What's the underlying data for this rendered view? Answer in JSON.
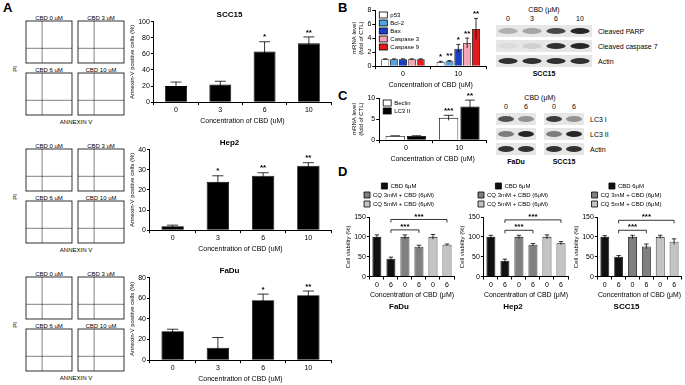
{
  "panel_labels": [
    "A",
    "B",
    "C",
    "D"
  ],
  "flow_plots": [
    {
      "plots": [
        "CBD 0 uM",
        "CBD 3 uM",
        "CBD 6 uM",
        "CBD 10 uM"
      ],
      "x_label": "ANNEXIN V",
      "y_label": "PI"
    },
    {
      "plots": [
        "CBD 0 uM",
        "CBD 3 uM",
        "CBD 6 uM",
        "CBD 10 uM"
      ],
      "x_label": "ANNEXIN V",
      "y_label": "PI"
    },
    {
      "plots": [
        "CBD 0 uM",
        "CBD 3 uM",
        "CBD 6 uM",
        "CBD 10 uM"
      ],
      "x_label": "ANNEXIN V",
      "y_label": "PI"
    }
  ],
  "chart_data": [
    {
      "type": "bar",
      "title": "SCC15",
      "categories": [
        "0",
        "3",
        "6",
        "10"
      ],
      "values": [
        20,
        22,
        63,
        73
      ],
      "errors": [
        5,
        4,
        12,
        8
      ],
      "annotations": [
        null,
        null,
        "*",
        "**"
      ],
      "color": "#000000",
      "ylim": [
        0,
        100
      ],
      "yticks": [
        0,
        20,
        40,
        60,
        80,
        100
      ],
      "y_label": "Annexin-V positive cells (%)",
      "x_label": "Concentration of CBD (uM)",
      "grid": false
    },
    {
      "type": "bar",
      "title": "Hep2",
      "categories": [
        "0",
        "3",
        "6",
        "10"
      ],
      "values": [
        2,
        24,
        27,
        32
      ],
      "errors": [
        0.5,
        3,
        1.5,
        1.5
      ],
      "annotations": [
        null,
        "*",
        "**",
        "**"
      ],
      "color": "#000000",
      "ylim": [
        0,
        40
      ],
      "yticks": [
        0,
        10,
        20,
        30,
        40
      ],
      "y_label": "Annexin-V positive cells (%)",
      "x_label": "Concentration of CBD (uM)",
      "grid": false
    },
    {
      "type": "bar",
      "title": "FaDu",
      "categories": [
        "0",
        "3",
        "6",
        "10"
      ],
      "values": [
        28,
        12,
        58,
        63
      ],
      "errors": [
        2,
        10,
        6,
        4
      ],
      "annotations": [
        null,
        null,
        "*",
        "**"
      ],
      "color": "#000000",
      "ylim": [
        0,
        80
      ],
      "yticks": [
        0,
        20,
        40,
        60,
        80
      ],
      "y_label": "Annexin-V positive cells (%)",
      "x_label": "Concentration of CBD (uM)",
      "grid": false
    },
    {
      "type": "bar",
      "categories": [
        "0",
        "10"
      ],
      "series": [
        {
          "name": "p53",
          "color": "#ffffff",
          "values": [
            1,
            0.6
          ],
          "errors": [
            0.05,
            0.1
          ],
          "annotations": [
            null,
            "*"
          ]
        },
        {
          "name": "Bcl-2",
          "color": "#4fa3e0",
          "values": [
            1,
            0.7
          ],
          "errors": [
            0.05,
            0.1
          ],
          "annotations": [
            null,
            "**"
          ]
        },
        {
          "name": "Bax",
          "color": "#1a3fc4",
          "values": [
            1,
            2.5
          ],
          "errors": [
            0.05,
            0.6
          ],
          "annotations": [
            null,
            "*"
          ]
        },
        {
          "name": "Caspase 3",
          "color": "#f4a6b4",
          "values": [
            1,
            3.3
          ],
          "errors": [
            0.05,
            0.7
          ],
          "annotations": [
            null,
            "**"
          ]
        },
        {
          "name": "Caspase 9",
          "color": "#e41a1c",
          "values": [
            1,
            5.3
          ],
          "errors": [
            0.05,
            1.5
          ],
          "annotations": [
            null,
            "**"
          ]
        }
      ],
      "ylim": [
        0,
        8
      ],
      "yticks": [
        0,
        2,
        4,
        6,
        8
      ],
      "y_label": [
        "mRNA level",
        "(fold of CTL)"
      ],
      "x_label": "Concentration of CBD (uM)",
      "legend": "top-left",
      "grid": false
    },
    {
      "type": "bar",
      "categories": [
        "0",
        "10"
      ],
      "series": [
        {
          "name": "Beclin",
          "color": "#ffffff",
          "values": [
            1,
            5.3
          ],
          "errors": [
            0.05,
            0.6
          ],
          "annotations": [
            null,
            "***"
          ]
        },
        {
          "name": "LC3 II",
          "color": "#000000",
          "values": [
            1,
            8
          ],
          "errors": [
            0.05,
            1.5
          ],
          "annotations": [
            null,
            "**"
          ]
        }
      ],
      "ylim": [
        0,
        10
      ],
      "yticks": [
        0,
        5,
        10
      ],
      "y_label": [
        "mRNA level",
        "(fold of CTL)"
      ],
      "x_label": "Concentration of CBD (uM)",
      "legend": "top-left",
      "grid": false
    },
    {
      "type": "bar",
      "title": "FaDu",
      "categories": [
        "0",
        "6",
        "0",
        "6",
        "0",
        "6"
      ],
      "series": [
        {
          "name": "CBD 6μM",
          "color": "#111111",
          "values": [
            100,
            45,
            null,
            null,
            null,
            null
          ],
          "errors": [
            5,
            4,
            null,
            null,
            null,
            null
          ]
        },
        {
          "name": "CQ 3mM + CBD (6μM)",
          "color": "#808080",
          "values": [
            null,
            null,
            100,
            75,
            null,
            null
          ],
          "errors": [
            null,
            null,
            5,
            4,
            null,
            null
          ]
        },
        {
          "name": "CQ 5mM + CBD (6μM)",
          "color": "#c4c4c4",
          "values": [
            null,
            null,
            null,
            null,
            100,
            80
          ],
          "errors": [
            null,
            null,
            null,
            null,
            6,
            2
          ]
        }
      ],
      "comparisons": [
        {
          "from": 1,
          "to": 3,
          "label": "***"
        },
        {
          "from": 1,
          "to": 5,
          "label": "***"
        }
      ],
      "ylim": [
        0,
        150
      ],
      "yticks": [
        0,
        50,
        100,
        150
      ],
      "y_label": "Cell viability (%)",
      "x_label": "Concentration of CBD (μM)",
      "legend": "top",
      "grid": false
    },
    {
      "type": "bar",
      "title": "Hep2",
      "categories": [
        "0",
        "6",
        "0",
        "6",
        "0",
        "6"
      ],
      "series": [
        {
          "name": "CBD 6μM",
          "color": "#111111",
          "values": [
            100,
            40,
            null,
            null,
            null,
            null
          ],
          "errors": [
            4,
            4,
            null,
            null,
            null,
            null
          ]
        },
        {
          "name": "CQ 3mM + CBD (6μM)",
          "color": "#808080",
          "values": [
            null,
            null,
            100,
            80,
            null,
            null
          ],
          "errors": [
            null,
            null,
            4,
            3,
            null,
            null
          ]
        },
        {
          "name": "CQ 5mM + CBD (6μM)",
          "color": "#c4c4c4",
          "values": [
            null,
            null,
            null,
            null,
            100,
            84
          ],
          "errors": [
            null,
            null,
            null,
            null,
            5,
            4
          ]
        }
      ],
      "comparisons": [
        {
          "from": 1,
          "to": 3,
          "label": "***"
        },
        {
          "from": 1,
          "to": 5,
          "label": "***"
        }
      ],
      "ylim": [
        0,
        150
      ],
      "yticks": [
        0,
        50,
        100,
        150
      ],
      "y_label": "Cell viability (%)",
      "x_label": "Concentration of CBD (μM)",
      "legend": "top",
      "grid": false
    },
    {
      "type": "bar",
      "title": "SCC15",
      "categories": [
        "0",
        "6",
        "0",
        "6",
        "0",
        "6"
      ],
      "series": [
        {
          "name": "CBD 6μM",
          "color": "#111111",
          "values": [
            100,
            50,
            null,
            null,
            null,
            null
          ],
          "errors": [
            3,
            3,
            null,
            null,
            null,
            null
          ]
        },
        {
          "name": "CQ 3mM + CBD (6μM)",
          "color": "#808080",
          "values": [
            null,
            null,
            100,
            76,
            null,
            null
          ],
          "errors": [
            null,
            null,
            4,
            6,
            null,
            null
          ]
        },
        {
          "name": "CQ 5mM + CBD (6μM)",
          "color": "#c4c4c4",
          "values": [
            null,
            null,
            null,
            null,
            100,
            88
          ],
          "errors": [
            null,
            null,
            null,
            null,
            4,
            7
          ]
        }
      ],
      "comparisons": [
        {
          "from": 1,
          "to": 3,
          "label": "***"
        },
        {
          "from": 1,
          "to": 5,
          "label": "***"
        }
      ],
      "ylim": [
        0,
        150
      ],
      "yticks": [
        0,
        50,
        100,
        150
      ],
      "y_label": "Cell viability (%)",
      "x_label": "Concentration of CBD (μM)",
      "legend": "top",
      "grid": false
    }
  ],
  "blots": [
    {
      "header": "CBD (μM)",
      "groups": [
        {
          "name": "SCC15",
          "lanes": [
            "0",
            "3",
            "6",
            "10"
          ]
        }
      ],
      "rows": [
        {
          "label": "Cleaved PARP",
          "bands": [
            0.25,
            0.3,
            0.75,
            0.9
          ]
        },
        {
          "label": "Cleaved caspase 7",
          "bands": [
            0.05,
            0.1,
            0.85,
            0.9
          ]
        },
        {
          "label": "Actin",
          "bands": [
            0.85,
            0.85,
            0.85,
            0.85
          ]
        }
      ]
    },
    {
      "header": "CBD (μM)",
      "groups": [
        {
          "name": "FaDu",
          "lanes": [
            "0",
            "6"
          ]
        },
        {
          "name": "SCC15",
          "lanes": [
            "0",
            "6"
          ]
        }
      ],
      "rows": [
        {
          "label": "LC3 I",
          "bands": [
            0.7,
            0.4,
            0.8,
            0.4
          ]
        },
        {
          "label": "LC3 II",
          "bands": [
            0.5,
            0.9,
            0.5,
            0.9
          ]
        },
        {
          "label": "Actin",
          "bands": [
            0.85,
            0.85,
            0.85,
            0.85
          ]
        }
      ]
    }
  ]
}
